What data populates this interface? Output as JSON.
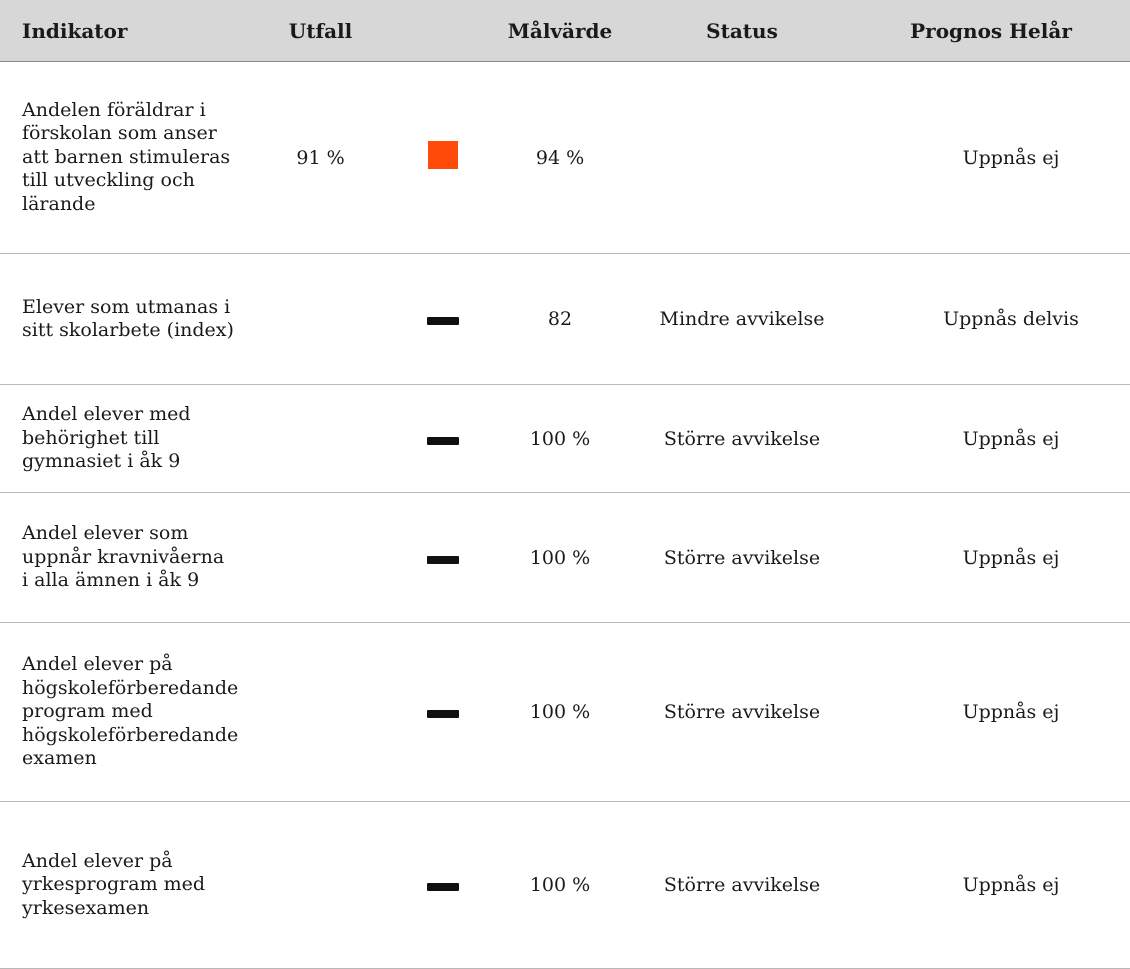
{
  "table": {
    "headers": {
      "indikator": "Indikator",
      "utfall": "Utfall",
      "malvarde": "Målvärde",
      "status": "Status",
      "prognos": "Prognos Helår"
    },
    "rows": [
      {
        "indikator": "Andelen föräldrar i förskolan som anser att barnen stimuleras till utveckling och lärande",
        "utfall": "91 %",
        "symbol": "orange-square",
        "symbol_color": "#ff4a0a",
        "malvarde": "94 %",
        "status": "",
        "prognos": "Uppnås ej"
      },
      {
        "indikator": "Elever som utmanas i sitt skolarbete (index)",
        "utfall": "",
        "symbol": "dash",
        "malvarde": "82",
        "status": "Mindre avvikelse",
        "prognos": "Uppnås delvis"
      },
      {
        "indikator": "Andel elever med behörighet till gymnasiet i åk 9",
        "utfall": "",
        "symbol": "dash",
        "malvarde": "100 %",
        "status": "Större avvikelse",
        "prognos": "Uppnås ej"
      },
      {
        "indikator": "Andel elever som uppnår kravnivåerna i alla ämnen i åk 9",
        "utfall": "",
        "symbol": "dash",
        "malvarde": "100 %",
        "status": "Större avvikelse",
        "prognos": "Uppnås ej"
      },
      {
        "indikator": "Andel elever på högskoleförberedande program med högskoleförberedande examen",
        "utfall": "",
        "symbol": "dash",
        "malvarde": "100 %",
        "status": "Större avvikelse",
        "prognos": "Uppnås ej"
      },
      {
        "indikator": "Andel elever på yrkesprogram med yrkesexamen",
        "utfall": "",
        "symbol": "dash",
        "malvarde": "100 %",
        "status": "Större avvikelse",
        "prognos": "Uppnås ej"
      }
    ]
  }
}
